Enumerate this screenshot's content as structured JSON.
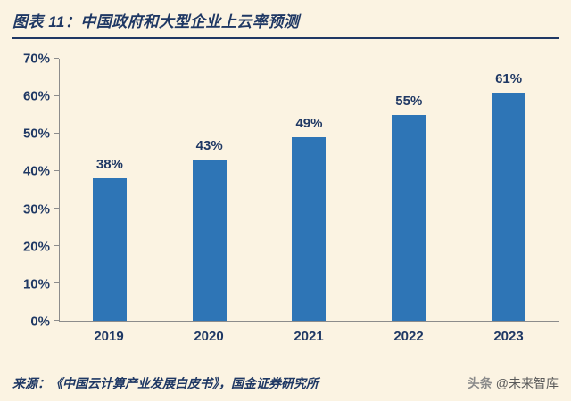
{
  "header": {
    "title": "图表 11：中国政府和大型企业上云率预测"
  },
  "chart_data": {
    "type": "bar",
    "title": "中国政府和大型企业上云率预测",
    "categories": [
      "2019",
      "2020",
      "2021",
      "2022",
      "2023"
    ],
    "values": [
      38,
      43,
      49,
      55,
      61
    ],
    "value_labels": [
      "38%",
      "43%",
      "49%",
      "55%",
      "61%"
    ],
    "xlabel": "",
    "ylabel": "",
    "ylim": [
      0,
      70
    ],
    "yticks": [
      "0%",
      "10%",
      "20%",
      "30%",
      "40%",
      "50%",
      "60%",
      "70%"
    ],
    "grid": false,
    "legend": "none",
    "bar_color": "#2e75b6",
    "label_color": "#1f3864",
    "axis_color": "#8c8c8c",
    "background_color": "#fbf3e2"
  },
  "footer": {
    "source": "来源：《中国云计算产业发展白皮书》，国金证券研究所",
    "watermark_logo": "头条",
    "watermark_handle": "@未来智库"
  }
}
